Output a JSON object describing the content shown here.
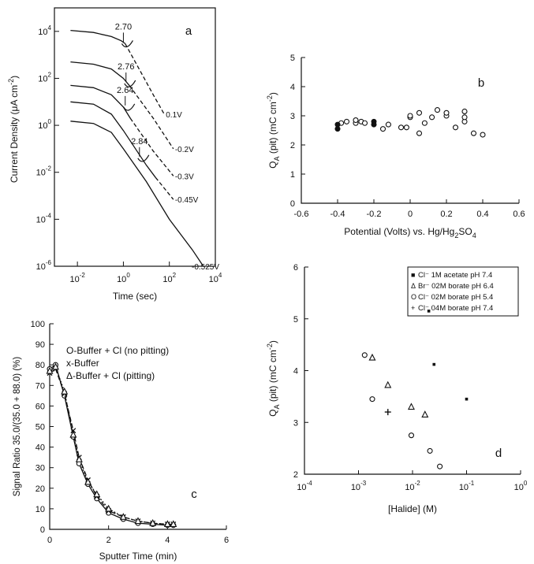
{
  "chart_data": [
    {
      "panel": "a",
      "type": "line",
      "xscale": "log",
      "yscale": "log",
      "xlabel": "Time (sec)",
      "ylabel_parts": [
        "Current Density (",
        "μ",
        "A cm",
        "-2",
        ")"
      ],
      "xlim": [
        0.001,
        10000
      ],
      "ylim": [
        1e-06,
        100000
      ],
      "xticks": [
        {
          "base": "10",
          "exp": "-2",
          "value": 0.01
        },
        {
          "base": "10",
          "exp": "0",
          "value": 1
        },
        {
          "base": "10",
          "exp": "2",
          "value": 100
        },
        {
          "base": "10",
          "exp": "4",
          "value": 10000
        }
      ],
      "yticks": [
        {
          "base": "10",
          "exp": "-6",
          "value": 1e-06
        },
        {
          "base": "10",
          "exp": "-4",
          "value": 0.0001
        },
        {
          "base": "10",
          "exp": "-2",
          "value": 0.01
        },
        {
          "base": "10",
          "exp": "0",
          "value": 1
        },
        {
          "base": "10",
          "exp": "2",
          "value": 100
        },
        {
          "base": "10",
          "exp": "4",
          "value": 10000
        }
      ],
      "series": [
        {
          "name": "0.1V",
          "solid": [
            [
              0.005,
              11000
            ],
            [
              0.05,
              9000
            ],
            [
              0.3,
              6000
            ],
            [
              0.8,
              4000
            ],
            [
              1.2,
              3000
            ]
          ],
          "dashed": [
            [
              1.2,
              3000
            ],
            [
              20,
              20
            ],
            [
              60,
              3
            ]
          ],
          "pit_mark": {
            "label": "2.70",
            "x": 1.0,
            "y": 3000
          }
        },
        {
          "name": "-0.2V",
          "solid": [
            [
              0.005,
              500
            ],
            [
              0.05,
              400
            ],
            [
              0.3,
              250
            ],
            [
              1,
              100
            ],
            [
              1.8,
              50
            ]
          ],
          "dashed": [
            [
              1.8,
              50
            ],
            [
              20,
              2
            ],
            [
              150,
              0.1
            ]
          ],
          "pit_mark": {
            "label": "2.76",
            "x": 1.3,
            "y": 60
          }
        },
        {
          "name": "-0.3V",
          "solid": [
            [
              0.005,
              50
            ],
            [
              0.05,
              40
            ],
            [
              0.3,
              20
            ],
            [
              1,
              6
            ],
            [
              2,
              2
            ]
          ],
          "dashed": [
            [
              2,
              2
            ],
            [
              20,
              0.08
            ],
            [
              150,
              0.007
            ]
          ],
          "pit_mark": {
            "label": "2.64",
            "x": 1.2,
            "y": 6
          }
        },
        {
          "name": "-0.45V",
          "solid": [
            [
              0.005,
              10
            ],
            [
              0.05,
              8
            ],
            [
              0.3,
              3
            ],
            [
              1,
              0.6
            ],
            [
              10,
              0.02
            ],
            [
              25,
              0.006
            ]
          ],
          "dashed": [
            [
              25,
              0.006
            ],
            [
              150,
              0.0007
            ]
          ],
          "pit_mark": {
            "label": "2.84",
            "x": 5,
            "y": 0.04
          }
        },
        {
          "name": "-0.525V",
          "solid": [
            [
              0.005,
              1.5
            ],
            [
              0.05,
              1.2
            ],
            [
              0.3,
              0.5
            ],
            [
              1,
              0.1
            ],
            [
              10,
              0.004
            ],
            [
              100,
              0.0001
            ],
            [
              1000,
              5e-06
            ],
            [
              3000,
              1e-06
            ]
          ],
          "dashed": []
        }
      ]
    },
    {
      "panel": "b",
      "type": "scatter",
      "xlabel_parts": [
        "Potential (Volts) vs. Hg/Hg",
        "2",
        "SO",
        "4"
      ],
      "ylabel_parts": [
        "Q",
        "A",
        " (pit) (mC cm",
        "-2",
        ")"
      ],
      "xlim": [
        -0.6,
        0.6
      ],
      "ylim": [
        0,
        5
      ],
      "xticks": [
        "-0.6",
        "-0.4",
        "-0.2",
        "0",
        "0.2",
        "0.4",
        "0.6"
      ],
      "yticks": [
        "0",
        "1",
        "2",
        "3",
        "4",
        "5"
      ],
      "points_filled": [
        [
          -0.4,
          2.55
        ],
        [
          -0.4,
          2.7
        ],
        [
          -0.2,
          2.8
        ],
        [
          -0.2,
          2.7
        ]
      ],
      "points_open": [
        [
          -0.38,
          2.75
        ],
        [
          -0.35,
          2.8
        ],
        [
          -0.3,
          2.75
        ],
        [
          -0.3,
          2.85
        ],
        [
          -0.27,
          2.8
        ],
        [
          -0.25,
          2.75
        ],
        [
          -0.15,
          2.55
        ],
        [
          -0.12,
          2.7
        ],
        [
          -0.05,
          2.6
        ],
        [
          -0.02,
          2.6
        ],
        [
          0.0,
          2.95
        ],
        [
          0.0,
          3.0
        ],
        [
          0.05,
          2.4
        ],
        [
          0.05,
          3.1
        ],
        [
          0.08,
          2.75
        ],
        [
          0.12,
          2.95
        ],
        [
          0.15,
          3.2
        ],
        [
          0.2,
          3.0
        ],
        [
          0.2,
          3.1
        ],
        [
          0.25,
          2.6
        ],
        [
          0.3,
          2.8
        ],
        [
          0.3,
          3.15
        ],
        [
          0.3,
          2.95
        ],
        [
          0.35,
          2.4
        ],
        [
          0.4,
          2.35
        ]
      ]
    },
    {
      "panel": "c",
      "type": "line",
      "xlabel": "Sputter Time (min)",
      "ylabel": "Signal Ratio 35.0/(35.0 + 88.0) (%)",
      "xlim": [
        0,
        6
      ],
      "ylim": [
        0,
        100
      ],
      "xticks": [
        "0",
        "2",
        "4",
        "6"
      ],
      "yticks": [
        "0",
        "10",
        "20",
        "30",
        "40",
        "50",
        "60",
        "70",
        "80",
        "90",
        "100"
      ],
      "series": [
        {
          "name": "O-Buffer + Cl (no pitting)",
          "marker": "circle",
          "x": [
            0,
            0.2,
            0.5,
            0.8,
            1.0,
            1.3,
            1.6,
            2.0,
            2.5,
            3.0,
            3.5,
            4.0,
            4.2
          ],
          "y": [
            78,
            80,
            65,
            45,
            32,
            22,
            15,
            8,
            5,
            3,
            2.5,
            2,
            2
          ]
        },
        {
          "name": "x-Buffer",
          "marker": "x",
          "x": [
            0,
            0.2,
            0.5,
            0.8,
            1.0,
            1.3,
            1.6,
            2.0,
            2.5,
            3.0,
            3.5,
            4.0,
            4.2
          ],
          "y": [
            76,
            78,
            66,
            48,
            35,
            24,
            16,
            9,
            6,
            4,
            3,
            2.5,
            2.5
          ]
        },
        {
          "name": "Δ-Buffer + Cl (pitting)",
          "marker": "triangle",
          "x": [
            0,
            0.2,
            0.5,
            0.8,
            1.0,
            1.3,
            1.6,
            2.0,
            2.5,
            3.0,
            3.5,
            4.0,
            4.2
          ],
          "y": [
            77,
            79,
            67,
            46,
            34,
            23,
            17,
            10,
            6,
            4,
            3,
            2.5,
            2.5
          ]
        }
      ],
      "legend_entries": [
        "O-Buffer + Cl (no pitting)",
        "x-Buffer",
        "Δ-Buffer + Cl (pitting)"
      ]
    },
    {
      "panel": "d",
      "type": "scatter",
      "xscale": "log",
      "xlabel": "[Halide] (M)",
      "ylabel_parts": [
        "Q",
        "A",
        " (pit) (mC cm",
        "-2",
        ")"
      ],
      "xlim": [
        0.0001,
        1
      ],
      "ylim": [
        2,
        6
      ],
      "xticks": [
        {
          "base": "10",
          "exp": "-4",
          "value": 0.0001
        },
        {
          "base": "10",
          "exp": "-3",
          "value": 0.001
        },
        {
          "base": "10",
          "exp": "-2",
          "value": 0.01
        },
        {
          "base": "10",
          "exp": "-1",
          "value": 0.1
        },
        {
          "base": "10",
          "exp": "0",
          "value": 1
        }
      ],
      "yticks": [
        "2",
        "3",
        "4",
        "5",
        "6"
      ],
      "series": [
        {
          "name": "Cl- 1M acetate pH 7.4",
          "marker": "filled-square",
          "x": [
            0.02,
            0.025,
            0.1
          ],
          "y": [
            5.15,
            4.12,
            3.45
          ]
        },
        {
          "name": "Br- 02M borate pH 6.4",
          "marker": "triangle",
          "x": [
            0.0018,
            0.0035,
            0.0095,
            0.017
          ],
          "y": [
            4.25,
            3.72,
            3.3,
            3.15
          ]
        },
        {
          "name": "Cl- 02M borate pH 5.4",
          "marker": "circle",
          "x": [
            0.0013,
            0.0018,
            0.0095,
            0.021,
            0.032
          ],
          "y": [
            4.3,
            3.45,
            2.75,
            2.45,
            2.15
          ]
        },
        {
          "name": "Cl- 04M borate pH 7.4",
          "marker": "plus",
          "x": [
            0.0035
          ],
          "y": [
            3.2
          ]
        }
      ],
      "legend_entries": [
        {
          "marker": "■",
          "text": "Cl⁻ 1M acetate pH 7.4"
        },
        {
          "marker": "Δ",
          "text": "Br⁻ 02M borate pH 6.4"
        },
        {
          "marker": "O",
          "text": "Cl⁻ 02M borate pH 5.4"
        },
        {
          "marker": "+",
          "text": "Cl⁻ 04M borate pH 7.4"
        }
      ]
    }
  ]
}
